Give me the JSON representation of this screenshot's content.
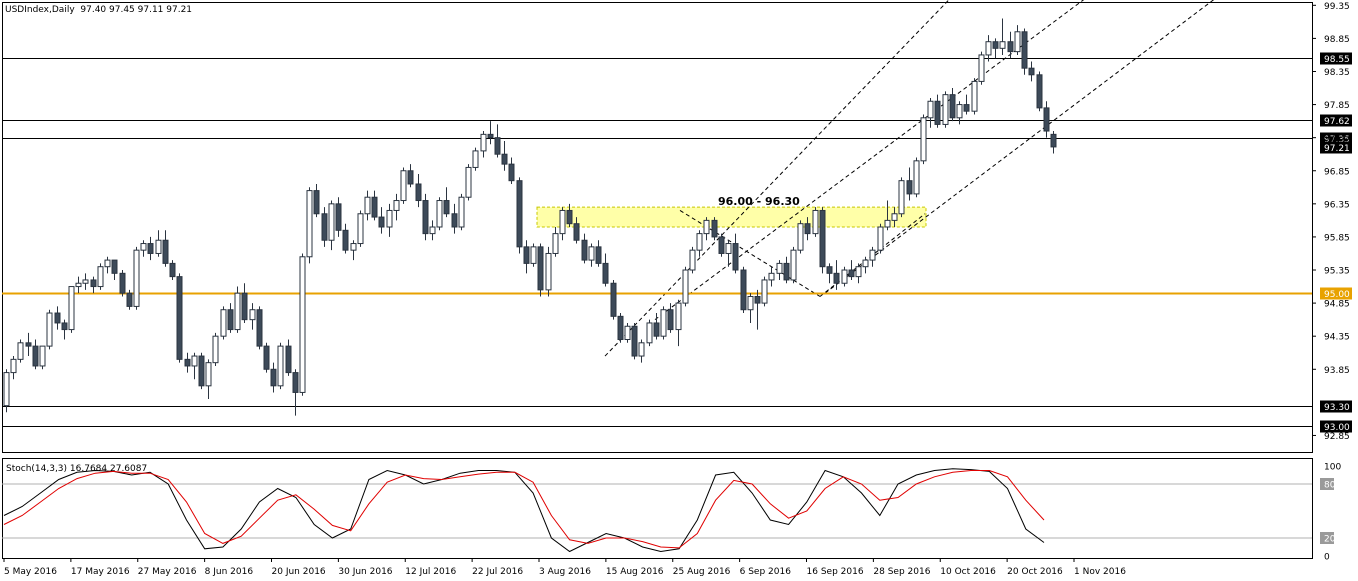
{
  "header": {
    "symbol": "USDIndex,Daily",
    "ohlc": "97.40 97.45 97.11 97.21"
  },
  "colors": {
    "bull": "#ffffff",
    "bear": "#3d4a59",
    "outline": "#2b3440",
    "support_line": "#e8a200",
    "zone_fill": "#ffffa8",
    "stoch_main": "#000000",
    "stoch_signal": "#e00000",
    "grid": "#000000"
  },
  "chart_data": [
    {
      "type": "candlestick",
      "title": "USDIndex,Daily",
      "ylim": [
        92.6,
        99.4
      ],
      "price_axis_ticks": [
        "99.35",
        "98.85",
        "98.35",
        "97.85",
        "97.35",
        "96.85",
        "96.35",
        "95.85",
        "95.35",
        "94.85",
        "94.35",
        "93.85",
        "92.85"
      ],
      "date_labels": [
        "5 May 2016",
        "17 May 2016",
        "27 May 2016",
        "8 Jun 2016",
        "20 Jun 2016",
        "30 Jun 2016",
        "12 Jul 2016",
        "22 Jul 2016",
        "3 Aug 2016",
        "15 Aug 2016",
        "25 Aug 2016",
        "6 Sep 2016",
        "16 Sep 2016",
        "28 Sep 2016",
        "10 Oct 2016",
        "20 Oct 2016",
        "1 Nov 2016"
      ],
      "ohlc": [
        [
          93.3,
          93.85,
          93.2,
          93.8
        ],
        [
          93.8,
          94.05,
          93.7,
          94.0
        ],
        [
          94.0,
          94.3,
          93.95,
          94.25
        ],
        [
          94.25,
          94.4,
          94.05,
          94.2
        ],
        [
          94.2,
          94.3,
          93.85,
          93.9
        ],
        [
          93.9,
          94.2,
          93.85,
          94.2
        ],
        [
          94.2,
          94.75,
          94.15,
          94.7
        ],
        [
          94.7,
          94.8,
          94.45,
          94.55
        ],
        [
          94.55,
          94.6,
          94.3,
          94.45
        ],
        [
          94.45,
          95.1,
          94.4,
          95.1
        ],
        [
          95.1,
          95.25,
          95.0,
          95.15
        ],
        [
          95.15,
          95.3,
          95.05,
          95.2
        ],
        [
          95.2,
          95.25,
          95.0,
          95.1
        ],
        [
          95.1,
          95.45,
          95.05,
          95.4
        ],
        [
          95.4,
          95.55,
          95.3,
          95.5
        ],
        [
          95.5,
          95.5,
          95.2,
          95.3
        ],
        [
          95.3,
          95.35,
          94.95,
          95.0
        ],
        [
          95.0,
          95.05,
          94.75,
          94.8
        ],
        [
          94.8,
          95.7,
          94.75,
          95.65
        ],
        [
          95.65,
          95.8,
          95.55,
          95.75
        ],
        [
          95.75,
          95.85,
          95.5,
          95.6
        ],
        [
          95.6,
          95.95,
          95.55,
          95.8
        ],
        [
          95.8,
          95.95,
          95.4,
          95.45
        ],
        [
          95.45,
          95.5,
          95.2,
          95.25
        ],
        [
          95.25,
          95.3,
          93.95,
          94.0
        ],
        [
          94.0,
          94.1,
          93.8,
          93.9
        ],
        [
          93.9,
          94.1,
          93.7,
          94.05
        ],
        [
          94.05,
          94.1,
          93.55,
          93.6
        ],
        [
          93.6,
          94.0,
          93.4,
          93.95
        ],
        [
          93.95,
          94.4,
          93.9,
          94.35
        ],
        [
          94.35,
          94.8,
          94.3,
          94.75
        ],
        [
          94.75,
          94.85,
          94.4,
          94.45
        ],
        [
          94.45,
          95.1,
          94.4,
          95.0
        ],
        [
          95.0,
          95.15,
          94.55,
          94.6
        ],
        [
          94.6,
          94.85,
          94.45,
          94.75
        ],
        [
          94.75,
          94.8,
          94.15,
          94.2
        ],
        [
          94.2,
          94.25,
          93.8,
          93.85
        ],
        [
          93.85,
          93.95,
          93.5,
          93.6
        ],
        [
          93.6,
          94.25,
          93.55,
          94.2
        ],
        [
          94.2,
          94.3,
          93.75,
          93.8
        ],
        [
          93.8,
          93.85,
          93.15,
          93.5
        ],
        [
          93.5,
          95.6,
          93.45,
          95.55
        ],
        [
          95.55,
          96.6,
          95.45,
          96.55
        ],
        [
          96.55,
          96.65,
          96.15,
          96.2
        ],
        [
          96.2,
          96.3,
          95.7,
          95.8
        ],
        [
          95.8,
          96.4,
          95.65,
          96.35
        ],
        [
          96.35,
          96.45,
          95.85,
          95.95
        ],
        [
          95.95,
          96.05,
          95.6,
          95.65
        ],
        [
          95.65,
          95.8,
          95.5,
          95.75
        ],
        [
          95.75,
          96.25,
          95.7,
          96.2
        ],
        [
          96.2,
          96.55,
          96.1,
          96.45
        ],
        [
          96.45,
          96.55,
          96.1,
          96.15
        ],
        [
          96.15,
          96.3,
          95.9,
          96.0
        ],
        [
          96.0,
          96.35,
          95.85,
          96.25
        ],
        [
          96.25,
          96.5,
          96.1,
          96.4
        ],
        [
          96.4,
          96.9,
          96.35,
          96.85
        ],
        [
          96.85,
          96.95,
          96.6,
          96.65
        ],
        [
          96.65,
          96.8,
          96.3,
          96.4
        ],
        [
          96.4,
          96.5,
          95.8,
          95.9
        ],
        [
          95.9,
          96.1,
          95.8,
          96.0
        ],
        [
          96.0,
          96.45,
          95.95,
          96.4
        ],
        [
          96.4,
          96.6,
          96.15,
          96.2
        ],
        [
          96.2,
          96.35,
          95.9,
          96.0
        ],
        [
          96.0,
          96.5,
          95.95,
          96.45
        ],
        [
          96.45,
          96.95,
          96.4,
          96.9
        ],
        [
          96.9,
          97.2,
          96.85,
          97.15
        ],
        [
          97.15,
          97.45,
          97.05,
          97.4
        ],
        [
          97.4,
          97.6,
          97.25,
          97.35
        ],
        [
          97.35,
          97.55,
          97.05,
          97.1
        ],
        [
          97.1,
          97.3,
          96.85,
          96.95
        ],
        [
          96.95,
          97.05,
          96.65,
          96.7
        ],
        [
          96.7,
          96.75,
          95.6,
          95.7
        ],
        [
          95.7,
          95.8,
          95.3,
          95.45
        ],
        [
          95.45,
          95.75,
          95.4,
          95.7
        ],
        [
          95.7,
          95.75,
          94.95,
          95.05
        ],
        [
          95.05,
          95.7,
          94.95,
          95.6
        ],
        [
          95.6,
          96.0,
          95.55,
          95.9
        ],
        [
          95.9,
          96.3,
          95.8,
          96.25
        ],
        [
          96.25,
          96.35,
          96.0,
          96.05
        ],
        [
          96.05,
          96.15,
          95.75,
          95.8
        ],
        [
          95.8,
          95.9,
          95.45,
          95.5
        ],
        [
          95.5,
          95.75,
          95.4,
          95.7
        ],
        [
          95.7,
          95.8,
          95.4,
          95.45
        ],
        [
          95.45,
          95.6,
          95.1,
          95.15
        ],
        [
          95.15,
          95.2,
          94.6,
          94.65
        ],
        [
          94.65,
          94.7,
          94.25,
          94.3
        ],
        [
          94.3,
          94.55,
          94.25,
          94.5
        ],
        [
          94.5,
          94.55,
          94.0,
          94.05
        ],
        [
          94.05,
          94.3,
          93.95,
          94.25
        ],
        [
          94.25,
          94.6,
          94.2,
          94.55
        ],
        [
          94.55,
          94.7,
          94.3,
          94.35
        ],
        [
          94.35,
          94.8,
          94.3,
          94.75
        ],
        [
          94.75,
          94.85,
          94.4,
          94.45
        ],
        [
          94.45,
          94.9,
          94.2,
          94.85
        ],
        [
          94.85,
          95.4,
          94.8,
          95.35
        ],
        [
          95.35,
          95.7,
          95.3,
          95.65
        ],
        [
          95.65,
          95.95,
          95.55,
          95.9
        ],
        [
          95.9,
          96.15,
          95.8,
          96.1
        ],
        [
          96.1,
          96.15,
          95.8,
          95.85
        ],
        [
          95.85,
          95.9,
          95.55,
          95.6
        ],
        [
          95.6,
          95.8,
          95.4,
          95.75
        ],
        [
          95.75,
          95.9,
          95.3,
          95.35
        ],
        [
          95.35,
          95.4,
          94.7,
          94.75
        ],
        [
          94.75,
          95.0,
          94.55,
          94.95
        ],
        [
          94.95,
          95.05,
          94.45,
          94.85
        ],
        [
          94.85,
          95.25,
          94.8,
          95.2
        ],
        [
          95.2,
          95.4,
          95.1,
          95.3
        ],
        [
          95.3,
          95.5,
          95.2,
          95.45
        ],
        [
          95.45,
          95.55,
          95.15,
          95.2
        ],
        [
          95.2,
          95.7,
          95.15,
          95.65
        ],
        [
          95.65,
          96.1,
          95.6,
          96.05
        ],
        [
          96.05,
          96.15,
          95.8,
          95.9
        ],
        [
          95.9,
          96.3,
          95.85,
          96.25
        ],
        [
          96.25,
          96.3,
          95.3,
          95.4
        ],
        [
          95.4,
          95.45,
          95.15,
          95.3
        ],
        [
          95.3,
          95.5,
          95.05,
          95.15
        ],
        [
          95.15,
          95.4,
          95.1,
          95.35
        ],
        [
          95.35,
          95.5,
          95.2,
          95.25
        ],
        [
          95.25,
          95.45,
          95.15,
          95.4
        ],
        [
          95.4,
          95.55,
          95.3,
          95.5
        ],
        [
          95.5,
          95.7,
          95.4,
          95.65
        ],
        [
          95.65,
          96.05,
          95.6,
          96.0
        ],
        [
          96.0,
          96.4,
          95.95,
          96.1
        ],
        [
          96.1,
          96.3,
          96.0,
          96.2
        ],
        [
          96.2,
          96.75,
          96.15,
          96.7
        ],
        [
          96.7,
          96.9,
          96.4,
          96.5
        ],
        [
          96.5,
          97.05,
          96.45,
          97.0
        ],
        [
          97.0,
          97.7,
          96.95,
          97.65
        ],
        [
          97.65,
          97.95,
          97.5,
          97.9
        ],
        [
          97.9,
          98.0,
          97.5,
          97.55
        ],
        [
          97.55,
          98.05,
          97.5,
          98.0
        ],
        [
          98.0,
          98.1,
          97.6,
          97.65
        ],
        [
          97.65,
          97.9,
          97.55,
          97.85
        ],
        [
          97.85,
          98.0,
          97.7,
          97.75
        ],
        [
          97.75,
          98.25,
          97.7,
          98.2
        ],
        [
          98.2,
          98.65,
          98.15,
          98.6
        ],
        [
          98.6,
          98.9,
          98.5,
          98.8
        ],
        [
          98.8,
          98.85,
          98.55,
          98.7
        ],
        [
          98.7,
          99.15,
          98.6,
          98.8
        ],
        [
          98.8,
          98.95,
          98.55,
          98.65
        ],
        [
          98.65,
          99.05,
          98.6,
          98.95
        ],
        [
          98.95,
          99.0,
          98.3,
          98.4
        ],
        [
          98.4,
          98.5,
          98.2,
          98.3
        ],
        [
          98.3,
          98.35,
          97.75,
          97.8
        ],
        [
          97.8,
          97.9,
          97.35,
          97.45
        ],
        [
          97.4,
          97.45,
          97.11,
          97.21
        ]
      ],
      "horizontal_levels": [
        {
          "value": 98.55,
          "label": "98.55",
          "color": "#000000"
        },
        {
          "value": 97.62,
          "label": "97.62",
          "color": "#000000"
        },
        {
          "value": 97.35,
          "label": "97.35",
          "color": "#000000"
        },
        {
          "value": 95.0,
          "label": "95.00",
          "color": "#e8a200"
        },
        {
          "value": 93.3,
          "label": "93.30",
          "color": "#000000"
        },
        {
          "value": 93.0,
          "label": "93.00",
          "color": "#000000"
        }
      ],
      "last_price_label": "97.21",
      "resistance_zone": {
        "low": 96.0,
        "high": 96.3,
        "annotation": "96.00 - 96.30"
      }
    },
    {
      "type": "line",
      "title": "Stoch(14,3,3) 16.7684 27.6087",
      "ylim": [
        0,
        100
      ],
      "y_ticks": [
        "100",
        "80",
        "20",
        "0"
      ],
      "series": [
        {
          "values": [
            45,
            55,
            70,
            85,
            93,
            95,
            94,
            90,
            93,
            80,
            40,
            8,
            10,
            30,
            60,
            75,
            65,
            35,
            20,
            30,
            85,
            95,
            90,
            80,
            85,
            92,
            95,
            95,
            93,
            70,
            20,
            5,
            15,
            25,
            20,
            10,
            5,
            8,
            40,
            90,
            93,
            70,
            40,
            35,
            60,
            95,
            88,
            70,
            45,
            80,
            90,
            95,
            97,
            96,
            94,
            75,
            30,
            15
          ]
        },
        {
          "values": [
            35,
            45,
            60,
            75,
            86,
            92,
            94,
            92,
            92,
            85,
            60,
            25,
            14,
            22,
            42,
            62,
            68,
            52,
            34,
            28,
            58,
            82,
            90,
            86,
            85,
            88,
            91,
            93,
            93,
            82,
            45,
            18,
            14,
            20,
            20,
            16,
            10,
            9,
            25,
            62,
            84,
            80,
            58,
            42,
            50,
            75,
            88,
            80,
            62,
            65,
            80,
            88,
            93,
            95,
            95,
            88,
            62,
            40
          ]
        }
      ]
    }
  ]
}
